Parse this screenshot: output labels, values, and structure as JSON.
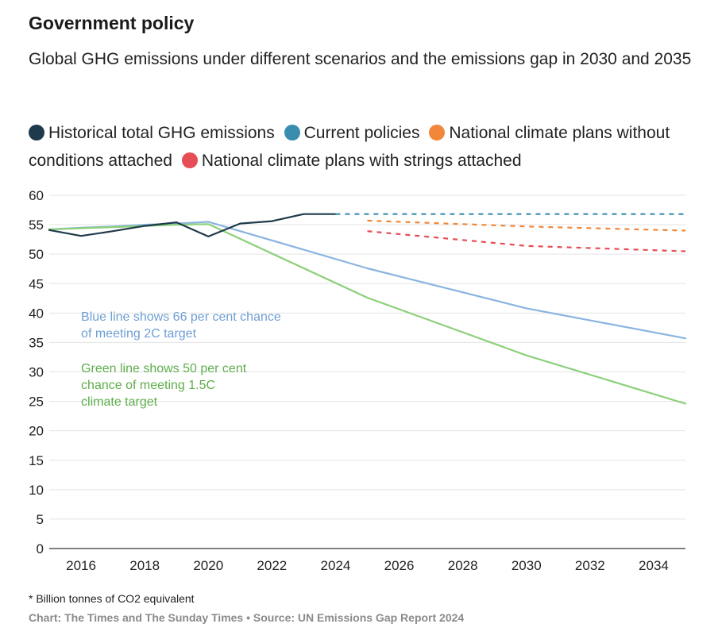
{
  "title": "Government policy",
  "subtitle": "Global GHG emissions under different scenarios and the emissions gap in 2030 and 2035",
  "legend": [
    {
      "label": "Historical total GHG emissions",
      "color": "#1f3a4a"
    },
    {
      "label": "Current policies",
      "color": "#3b8db0"
    },
    {
      "label": "National climate plans without conditions attached",
      "color": "#f0873a"
    },
    {
      "label": "National climate plans with strings attached",
      "color": "#e64d55"
    }
  ],
  "footnote": "* Billion tonnes of CO2 equivalent",
  "source": "Chart: The Times and The Sunday Times • Source: UN Emissions Gap Report 2024",
  "chart_data": {
    "type": "line",
    "xlim": [
      2015,
      2035
    ],
    "ylim": [
      0,
      60
    ],
    "xticks": [
      2016,
      2018,
      2020,
      2022,
      2024,
      2026,
      2028,
      2030,
      2032,
      2034
    ],
    "yticks": [
      0,
      5,
      10,
      15,
      20,
      25,
      30,
      35,
      40,
      45,
      50,
      55,
      60
    ],
    "grid": true,
    "series": [
      {
        "name": "Blue line (66 per cent chance of meeting 2C target)",
        "color": "#8ab4e0",
        "style": "solid",
        "x": [
          2015,
          2016,
          2017,
          2018,
          2019,
          2020,
          2025,
          2030,
          2035
        ],
        "y": [
          54.2,
          54.5,
          54.7,
          55.0,
          55.2,
          55.5,
          47.6,
          40.8,
          35.7
        ]
      },
      {
        "name": "Green line (50 per cent chance of meeting 1.5C climate target)",
        "color": "#8cd07a",
        "style": "solid",
        "x": [
          2015,
          2016,
          2017,
          2018,
          2019,
          2020,
          2025,
          2030,
          2035
        ],
        "y": [
          54.2,
          54.4,
          54.6,
          54.8,
          55.0,
          55.1,
          42.6,
          32.8,
          24.6
        ]
      },
      {
        "name": "Historical total GHG emissions",
        "color": "#1f3a4a",
        "style": "solid",
        "x": [
          2015,
          2016,
          2017,
          2018,
          2019,
          2020,
          2021,
          2022,
          2023,
          2024
        ],
        "y": [
          54.1,
          53.1,
          53.9,
          54.8,
          55.4,
          53.0,
          55.2,
          55.6,
          56.8,
          56.8
        ]
      },
      {
        "name": "Current policies",
        "color": "#3b8db0",
        "style": "dashed",
        "x": [
          2024,
          2030,
          2035
        ],
        "y": [
          56.8,
          56.8,
          56.8
        ]
      },
      {
        "name": "National climate plans without conditions attached",
        "color": "#f0873a",
        "style": "dashed",
        "x": [
          2025,
          2030,
          2035
        ],
        "y": [
          55.7,
          54.7,
          54.0
        ]
      },
      {
        "name": "National climate plans with strings attached",
        "color": "#e64d55",
        "style": "dashed",
        "x": [
          2025,
          2030,
          2035
        ],
        "y": [
          53.9,
          51.4,
          50.5
        ]
      }
    ],
    "annotations": [
      {
        "lines": [
          "Blue line shows 66 per cent chance",
          "of meeting 2C target"
        ],
        "color": "#6e9fd4",
        "x": 2016,
        "y": 38.7
      },
      {
        "lines": [
          "Green line shows 50 per cent",
          "chance of meeting 1.5C",
          "climate target"
        ],
        "color": "#5fae4c",
        "x": 2016,
        "y": 29.9
      }
    ]
  }
}
